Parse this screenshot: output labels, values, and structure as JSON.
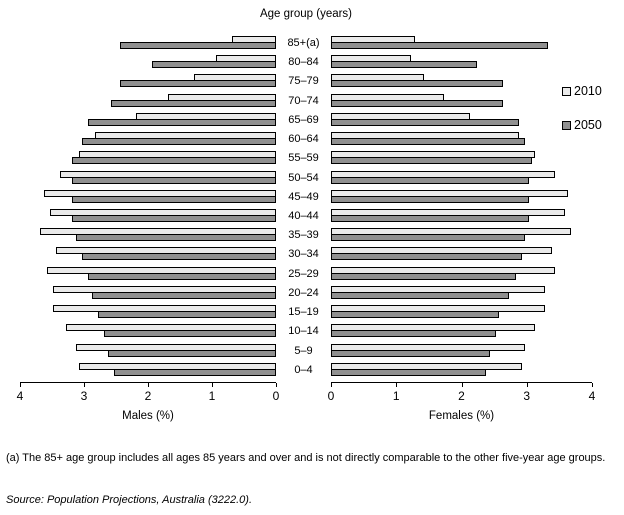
{
  "title": "Age group (years)",
  "legend": [
    {
      "label": "2010",
      "color": "#eaeaea"
    },
    {
      "label": "2050",
      "color": "#909090"
    }
  ],
  "footnote": "(a) The 85+ age group includes all ages 85 years and over and is not directly comparable to the other five-year age groups.",
  "source": "Source: Population Projections, Australia (3222.0).",
  "chart_data": {
    "type": "bar",
    "subtype": "population-pyramid",
    "title": "Age group (years)",
    "categories": [
      "85+(a)",
      "80–84",
      "75–79",
      "70–74",
      "65–69",
      "60–64",
      "55–59",
      "50–54",
      "45–49",
      "40–44",
      "35–39",
      "30–34",
      "25–29",
      "20–24",
      "15–19",
      "10–14",
      "5–9",
      "0–4"
    ],
    "xlabel_left": "Males (%)",
    "xlabel_right": "Females (%)",
    "axis_ticks": [
      0,
      1,
      2,
      3,
      4
    ],
    "xlim": [
      0,
      4
    ],
    "grid": false,
    "legend_position": "right",
    "colors": {
      "2010": "#eaeaea",
      "2050": "#909090"
    },
    "series": [
      {
        "name": "Males 2010",
        "side": "left",
        "year": "2010",
        "values": [
          0.65,
          0.9,
          1.25,
          1.65,
          2.15,
          2.8,
          3.05,
          3.35,
          3.6,
          3.5,
          3.65,
          3.4,
          3.55,
          3.45,
          3.45,
          3.25,
          3.1,
          3.05
        ]
      },
      {
        "name": "Males 2050",
        "side": "left",
        "year": "2050",
        "values": [
          2.4,
          1.9,
          2.4,
          2.55,
          2.9,
          3.0,
          3.15,
          3.15,
          3.15,
          3.15,
          3.1,
          3.0,
          2.9,
          2.85,
          2.75,
          2.65,
          2.6,
          2.5
        ]
      },
      {
        "name": "Females 2010",
        "side": "right",
        "year": "2010",
        "values": [
          1.25,
          1.2,
          1.4,
          1.7,
          2.1,
          2.85,
          3.1,
          3.4,
          3.6,
          3.55,
          3.65,
          3.35,
          3.4,
          3.25,
          3.25,
          3.1,
          2.95,
          2.9
        ]
      },
      {
        "name": "Females 2050",
        "side": "right",
        "year": "2050",
        "values": [
          3.3,
          2.2,
          2.6,
          2.6,
          2.85,
          2.95,
          3.05,
          3.0,
          3.0,
          3.0,
          2.95,
          2.9,
          2.8,
          2.7,
          2.55,
          2.5,
          2.4,
          2.35
        ]
      }
    ]
  }
}
